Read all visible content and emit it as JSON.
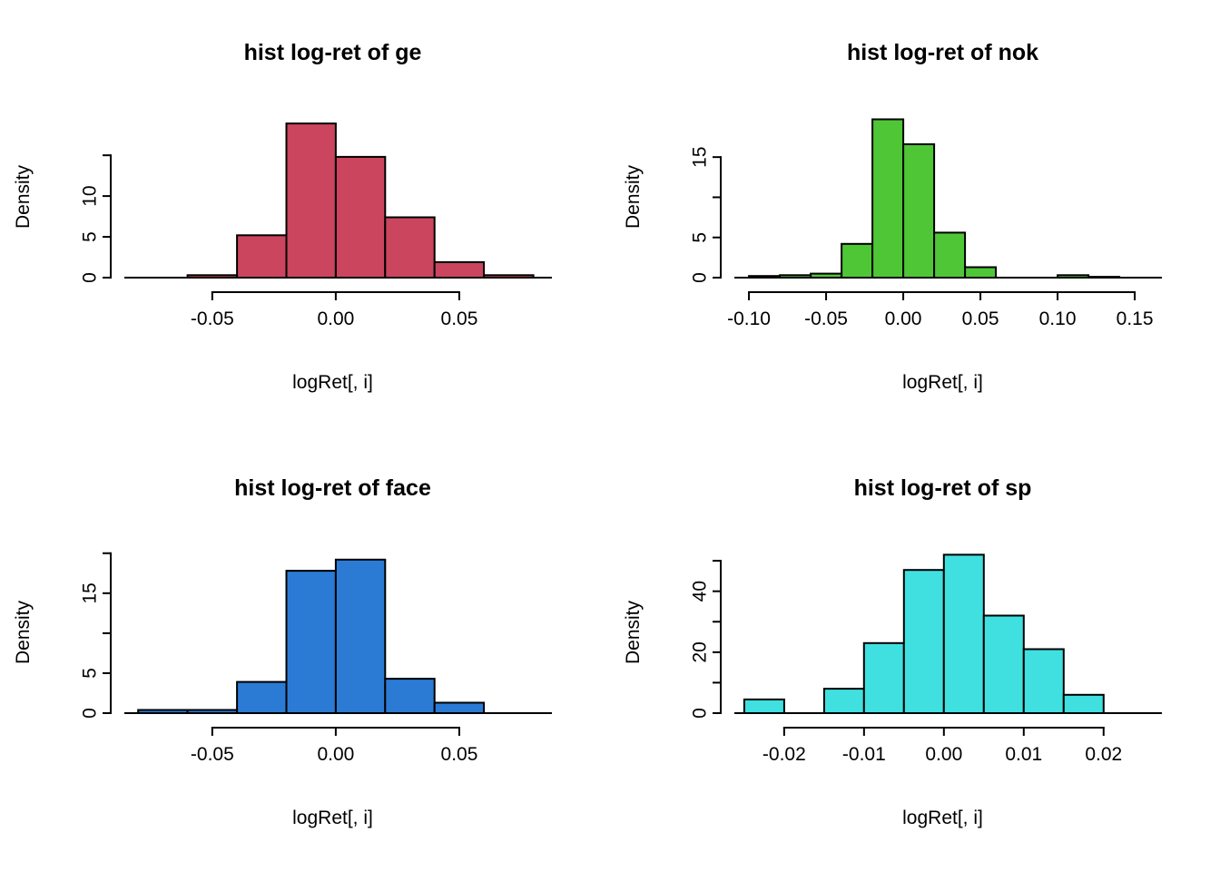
{
  "page": {
    "background": "#ffffff",
    "layout": "2x2-histogram-grid"
  },
  "chart_data": [
    {
      "type": "histogram",
      "title": "hist log-ret of ge",
      "xlabel": "logRet[, i]",
      "ylabel": "Density",
      "bar_color": "#CB455F",
      "breaks": [
        -0.06,
        -0.04,
        -0.02,
        0.0,
        0.02,
        0.04,
        0.06,
        0.08
      ],
      "densities": [
        0.3,
        5.2,
        18.9,
        14.8,
        7.4,
        1.9,
        0.3
      ],
      "xlim": [
        -0.09,
        0.0875
      ],
      "ylim": [
        0,
        19.8
      ],
      "x_ticks": [
        {
          "v": -0.05,
          "label": "-0.05"
        },
        {
          "v": 0.0,
          "label": "0.00"
        },
        {
          "v": 0.05,
          "label": "0.05"
        }
      ],
      "y_ticks": [
        {
          "v": 0,
          "label": "0"
        },
        {
          "v": 5,
          "label": "5"
        },
        {
          "v": 10,
          "label": "10"
        },
        {
          "v": 15,
          "label": ""
        }
      ]
    },
    {
      "type": "histogram",
      "title": "hist log-ret of nok",
      "xlabel": "logRet[, i]",
      "ylabel": "Density",
      "bar_color": "#4FC636",
      "breaks": [
        -0.1,
        -0.08,
        -0.06,
        -0.04,
        -0.02,
        0.0,
        0.02,
        0.04,
        0.06,
        0.08,
        0.1,
        0.12,
        0.14
      ],
      "densities": [
        0.2,
        0.3,
        0.5,
        4.2,
        19.7,
        16.6,
        5.6,
        1.3,
        0,
        0,
        0.3,
        0.1
      ],
      "xlim": [
        -0.1165,
        0.1676
      ],
      "ylim": [
        0,
        20.1
      ],
      "x_ticks": [
        {
          "v": -0.1,
          "label": "-0.10"
        },
        {
          "v": -0.05,
          "label": "-0.05"
        },
        {
          "v": 0.0,
          "label": "0.00"
        },
        {
          "v": 0.05,
          "label": "0.05"
        },
        {
          "v": 0.1,
          "label": "0.10"
        },
        {
          "v": 0.15,
          "label": "0.15"
        }
      ],
      "y_ticks": [
        {
          "v": 0,
          "label": "0"
        },
        {
          "v": 5,
          "label": "5"
        },
        {
          "v": 10,
          "label": ""
        },
        {
          "v": 15,
          "label": "15"
        }
      ]
    },
    {
      "type": "histogram",
      "title": "hist log-ret of face",
      "xlabel": "logRet[, i]",
      "ylabel": "Density",
      "bar_color": "#2B7BD5",
      "breaks": [
        -0.08,
        -0.06,
        -0.04,
        -0.02,
        0.0,
        0.02,
        0.04,
        0.06
      ],
      "densities": [
        0.4,
        0.4,
        3.9,
        17.8,
        19.2,
        4.3,
        1.3
      ],
      "xlim": [
        -0.09,
        0.0875
      ],
      "ylim": [
        0,
        20.2
      ],
      "x_ticks": [
        {
          "v": -0.05,
          "label": "-0.05"
        },
        {
          "v": 0.0,
          "label": "0.00"
        },
        {
          "v": 0.05,
          "label": "0.05"
        }
      ],
      "y_ticks": [
        {
          "v": 0,
          "label": "0"
        },
        {
          "v": 5,
          "label": "5"
        },
        {
          "v": 10,
          "label": ""
        },
        {
          "v": 15,
          "label": "15"
        },
        {
          "v": 20,
          "label": ""
        }
      ]
    },
    {
      "type": "histogram",
      "title": "hist log-ret of sp",
      "xlabel": "logRet[, i]",
      "ylabel": "Density",
      "bar_color": "#40E0E0",
      "breaks": [
        -0.025,
        -0.02,
        -0.015,
        -0.01,
        -0.005,
        0.0,
        0.005,
        0.01,
        0.015,
        0.02
      ],
      "densities": [
        4.5,
        0,
        8,
        23,
        47,
        52,
        32,
        21,
        6
      ],
      "xlim": [
        -0.0276,
        0.0273
      ],
      "ylim": [
        0,
        53
      ],
      "x_ticks": [
        {
          "v": -0.02,
          "label": "-0.02"
        },
        {
          "v": -0.01,
          "label": "-0.01"
        },
        {
          "v": 0.0,
          "label": "0.00"
        },
        {
          "v": 0.01,
          "label": "0.01"
        },
        {
          "v": 0.02,
          "label": "0.02"
        }
      ],
      "y_ticks": [
        {
          "v": 0,
          "label": "0"
        },
        {
          "v": 10,
          "label": ""
        },
        {
          "v": 20,
          "label": "20"
        },
        {
          "v": 30,
          "label": ""
        },
        {
          "v": 40,
          "label": "40"
        },
        {
          "v": 50,
          "label": ""
        }
      ]
    }
  ]
}
